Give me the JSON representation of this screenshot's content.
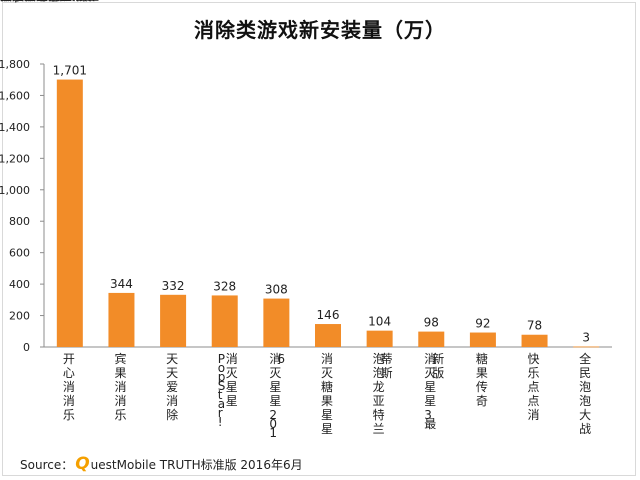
{
  "chart_data": {
    "type": "bar",
    "title": "消除类游戏新安装量（万）",
    "categories": [
      "开心消消乐",
      "宾果消消乐",
      "天天爱消除",
      "PopStar!消灭星星",
      "消灭星星2016",
      "消灭糖果星星",
      "泡泡龙亚特兰蒂斯",
      "消灭星星3最新版",
      "糖果传奇",
      "快乐点点消",
      "全民泡泡大战"
    ],
    "values": [
      1701,
      344,
      332,
      328,
      308,
      146,
      104,
      98,
      92,
      78,
      3
    ],
    "value_labels": [
      "1,701",
      "344",
      "332",
      "328",
      "308",
      "146",
      "104",
      "98",
      "92",
      "78",
      "3"
    ],
    "xlabel": "",
    "ylabel": "",
    "ylim": [
      0,
      1800
    ],
    "yticks": [
      0,
      200,
      400,
      600,
      800,
      1000,
      1200,
      1400,
      1600,
      1800
    ],
    "ytick_labels": [
      "0",
      "200",
      "400",
      "600",
      "800",
      "1,000",
      "1,200",
      "1,400",
      "1,600",
      "1,800"
    ],
    "grid": false,
    "legend": "none",
    "bar_color": "#f28c28"
  },
  "source": {
    "prefix": "Source：",
    "brand_letter": "Q",
    "text": "uestMobile TRUTH标准版 2016年6月"
  }
}
